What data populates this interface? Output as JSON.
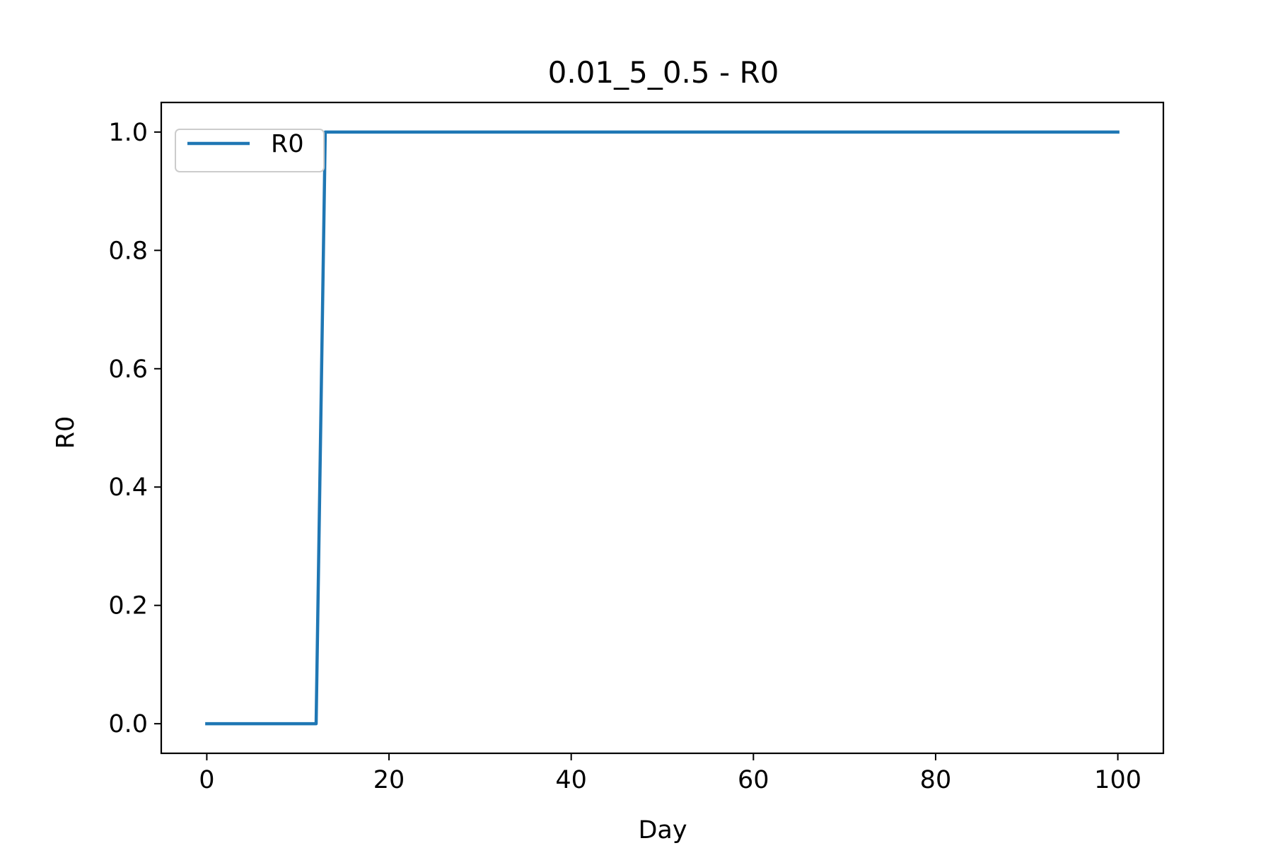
{
  "chart_data": {
    "type": "line",
    "title": "0.01_5_0.5 - R0",
    "xlabel": "Day",
    "ylabel": "R0",
    "xlim": [
      -5,
      105
    ],
    "ylim": [
      -0.05,
      1.05
    ],
    "xticks": [
      0,
      20,
      40,
      60,
      80,
      100
    ],
    "xtick_labels": [
      "0",
      "20",
      "40",
      "60",
      "80",
      "100"
    ],
    "yticks": [
      0.0,
      0.2,
      0.4,
      0.6,
      0.8,
      1.0
    ],
    "ytick_labels": [
      "0.0",
      "0.2",
      "0.4",
      "0.6",
      "0.8",
      "1.0"
    ],
    "grid": false,
    "legend_position": "top-left",
    "series": [
      {
        "name": "R0",
        "color": "#1f77b4",
        "x": [
          0,
          12,
          13,
          100
        ],
        "y": [
          0,
          0,
          1,
          1
        ]
      }
    ]
  }
}
